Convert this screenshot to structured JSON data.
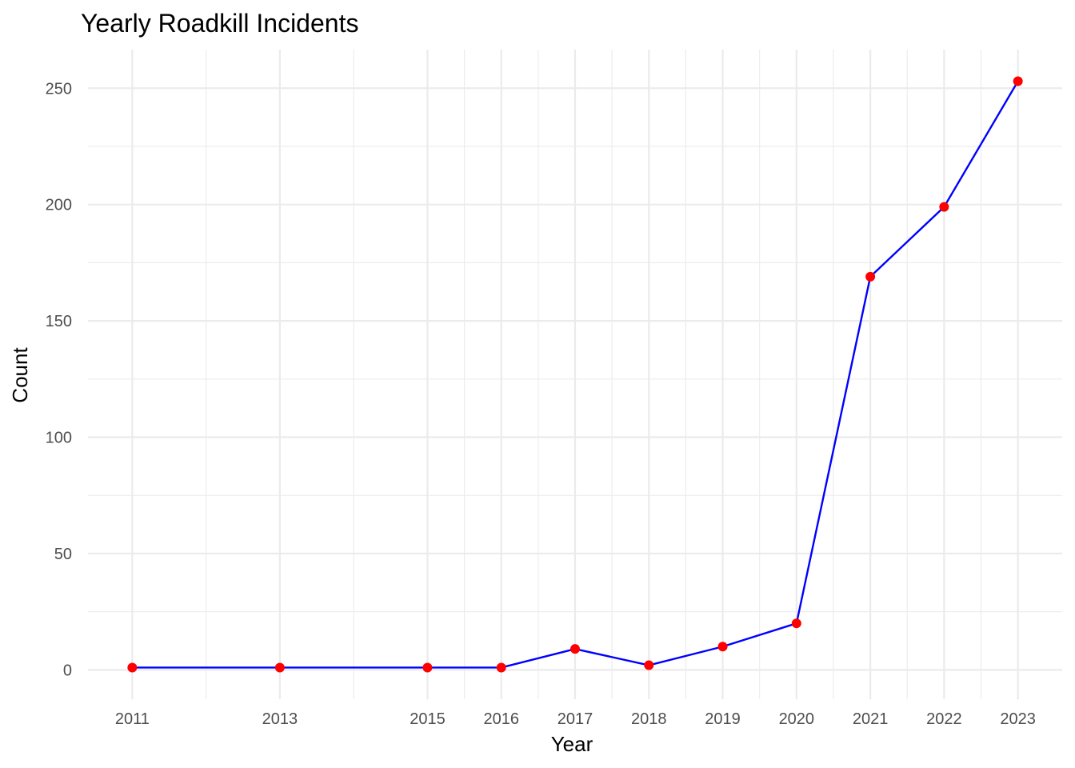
{
  "chart_data": {
    "type": "line",
    "title": "Yearly Roadkill Incidents",
    "xlabel": "Year",
    "ylabel": "Count",
    "x": [
      2011,
      2013,
      2015,
      2016,
      2017,
      2018,
      2019,
      2020,
      2021,
      2022,
      2023
    ],
    "series": [
      {
        "values": [
          1,
          1,
          1,
          1,
          9,
          2,
          10,
          20,
          169,
          199,
          253
        ]
      }
    ],
    "x_ticks": [
      "2011",
      "2013",
      "2015",
      "2016",
      "2017",
      "2018",
      "2019",
      "2020",
      "2021",
      "2022",
      "2023"
    ],
    "y_ticks": [
      0,
      50,
      100,
      150,
      200,
      250
    ],
    "xlim": [
      2010.4,
      2023.6
    ],
    "ylim": [
      -12.6,
      266.6
    ],
    "grid": true,
    "line_color": "#0000ff",
    "point_color": "#ff0000",
    "background": "#ffffff"
  }
}
